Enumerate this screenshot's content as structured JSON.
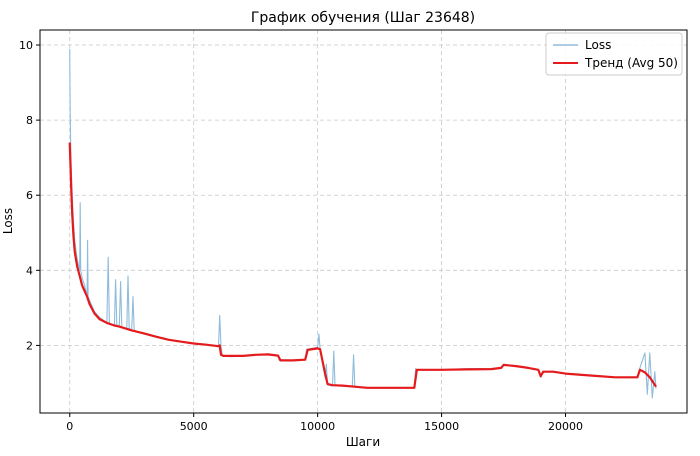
{
  "chart_data": {
    "type": "line",
    "title": "График обучения (Шаг 23648)",
    "xlabel": "Шаги",
    "ylabel": "Loss",
    "xlim": [
      -1200,
      24900
    ],
    "ylim": [
      0.2,
      10.4
    ],
    "xticks": [
      0,
      5000,
      10000,
      15000,
      20000
    ],
    "yticks": [
      2,
      4,
      6,
      8,
      10
    ],
    "grid": true,
    "legend_position": "top-right",
    "series": [
      {
        "name": "Loss",
        "color": "#8fbcdb",
        "x": [
          0,
          20,
          40,
          60,
          100,
          150,
          200,
          300,
          400,
          420,
          440,
          500,
          600,
          700,
          720,
          740,
          800,
          1000,
          1200,
          1400,
          1500,
          1550,
          1600,
          1700,
          1800,
          1850,
          1900,
          2000,
          2050,
          2100,
          2200,
          2300,
          2350,
          2400,
          2500,
          2550,
          2600,
          2800,
          3000,
          3500,
          4000,
          4500,
          5000,
          5500,
          6000,
          6050,
          6100,
          6150,
          6200,
          6500,
          7000,
          7500,
          8000,
          8400,
          8450,
          8500,
          9000,
          9500,
          9550,
          9600,
          10000,
          10050,
          10100,
          10300,
          10350,
          10400,
          10600,
          10650,
          10700,
          11000,
          11400,
          11450,
          11500,
          11600,
          12000,
          13000,
          13900,
          13950,
          14000,
          15000,
          16000,
          17000,
          17400,
          17500,
          18000,
          18500,
          18900,
          19000,
          19100,
          19500,
          20000,
          21000,
          22000,
          22900,
          23000,
          23200,
          23300,
          23400,
          23500,
          23600,
          23648
        ],
        "y": [
          9.9,
          8.2,
          7.3,
          6.7,
          6.0,
          5.3,
          4.8,
          4.3,
          4.0,
          5.8,
          4.0,
          3.8,
          3.6,
          3.3,
          4.8,
          3.3,
          3.2,
          2.9,
          2.75,
          2.65,
          2.6,
          4.35,
          2.6,
          2.55,
          2.55,
          3.75,
          2.55,
          2.5,
          3.7,
          2.5,
          2.45,
          2.45,
          3.85,
          2.45,
          2.42,
          3.3,
          2.4,
          2.35,
          2.3,
          2.22,
          2.15,
          2.1,
          2.05,
          2.02,
          1.98,
          2.8,
          1.98,
          1.75,
          1.72,
          1.7,
          1.72,
          1.75,
          1.75,
          1.72,
          1.6,
          1.62,
          1.6,
          1.62,
          1.9,
          1.9,
          1.95,
          2.3,
          1.9,
          1.15,
          1.5,
          0.95,
          0.92,
          1.85,
          0.93,
          0.92,
          0.92,
          1.75,
          0.9,
          0.88,
          0.87,
          0.87,
          0.87,
          1.38,
          1.35,
          1.35,
          1.38,
          1.38,
          1.4,
          1.5,
          1.45,
          1.4,
          1.35,
          1.15,
          1.3,
          1.3,
          1.25,
          1.2,
          1.15,
          1.15,
          1.4,
          1.8,
          0.7,
          1.8,
          0.6,
          1.3,
          0.85
        ]
      },
      {
        "name": "Тренд (Avg 50)",
        "color": "#e41a1c",
        "x": [
          0,
          30,
          60,
          100,
          150,
          200,
          300,
          400,
          500,
          600,
          700,
          800,
          1000,
          1200,
          1500,
          1800,
          2000,
          2500,
          3000,
          3500,
          4000,
          4500,
          5000,
          5500,
          6000,
          6050,
          6100,
          6200,
          7000,
          7500,
          8000,
          8400,
          8500,
          9000,
          9500,
          9600,
          10000,
          10100,
          10300,
          10400,
          10600,
          11000,
          11500,
          12000,
          13000,
          13900,
          14000,
          15000,
          16000,
          17000,
          17400,
          17500,
          18000,
          18500,
          18900,
          19000,
          19100,
          19500,
          20000,
          21000,
          22000,
          22900,
          23000,
          23200,
          23400,
          23600,
          23648
        ],
        "y": [
          7.4,
          6.8,
          6.2,
          5.5,
          4.9,
          4.5,
          4.1,
          3.85,
          3.6,
          3.45,
          3.3,
          3.1,
          2.85,
          2.7,
          2.6,
          2.53,
          2.5,
          2.4,
          2.32,
          2.23,
          2.15,
          2.1,
          2.05,
          2.02,
          1.98,
          2.0,
          1.75,
          1.72,
          1.72,
          1.75,
          1.76,
          1.73,
          1.6,
          1.6,
          1.62,
          1.88,
          1.92,
          1.9,
          1.25,
          0.97,
          0.94,
          0.93,
          0.9,
          0.87,
          0.87,
          0.87,
          1.35,
          1.35,
          1.36,
          1.37,
          1.4,
          1.48,
          1.45,
          1.4,
          1.35,
          1.18,
          1.3,
          1.3,
          1.25,
          1.2,
          1.15,
          1.15,
          1.35,
          1.28,
          1.15,
          0.95,
          0.9
        ]
      }
    ]
  }
}
